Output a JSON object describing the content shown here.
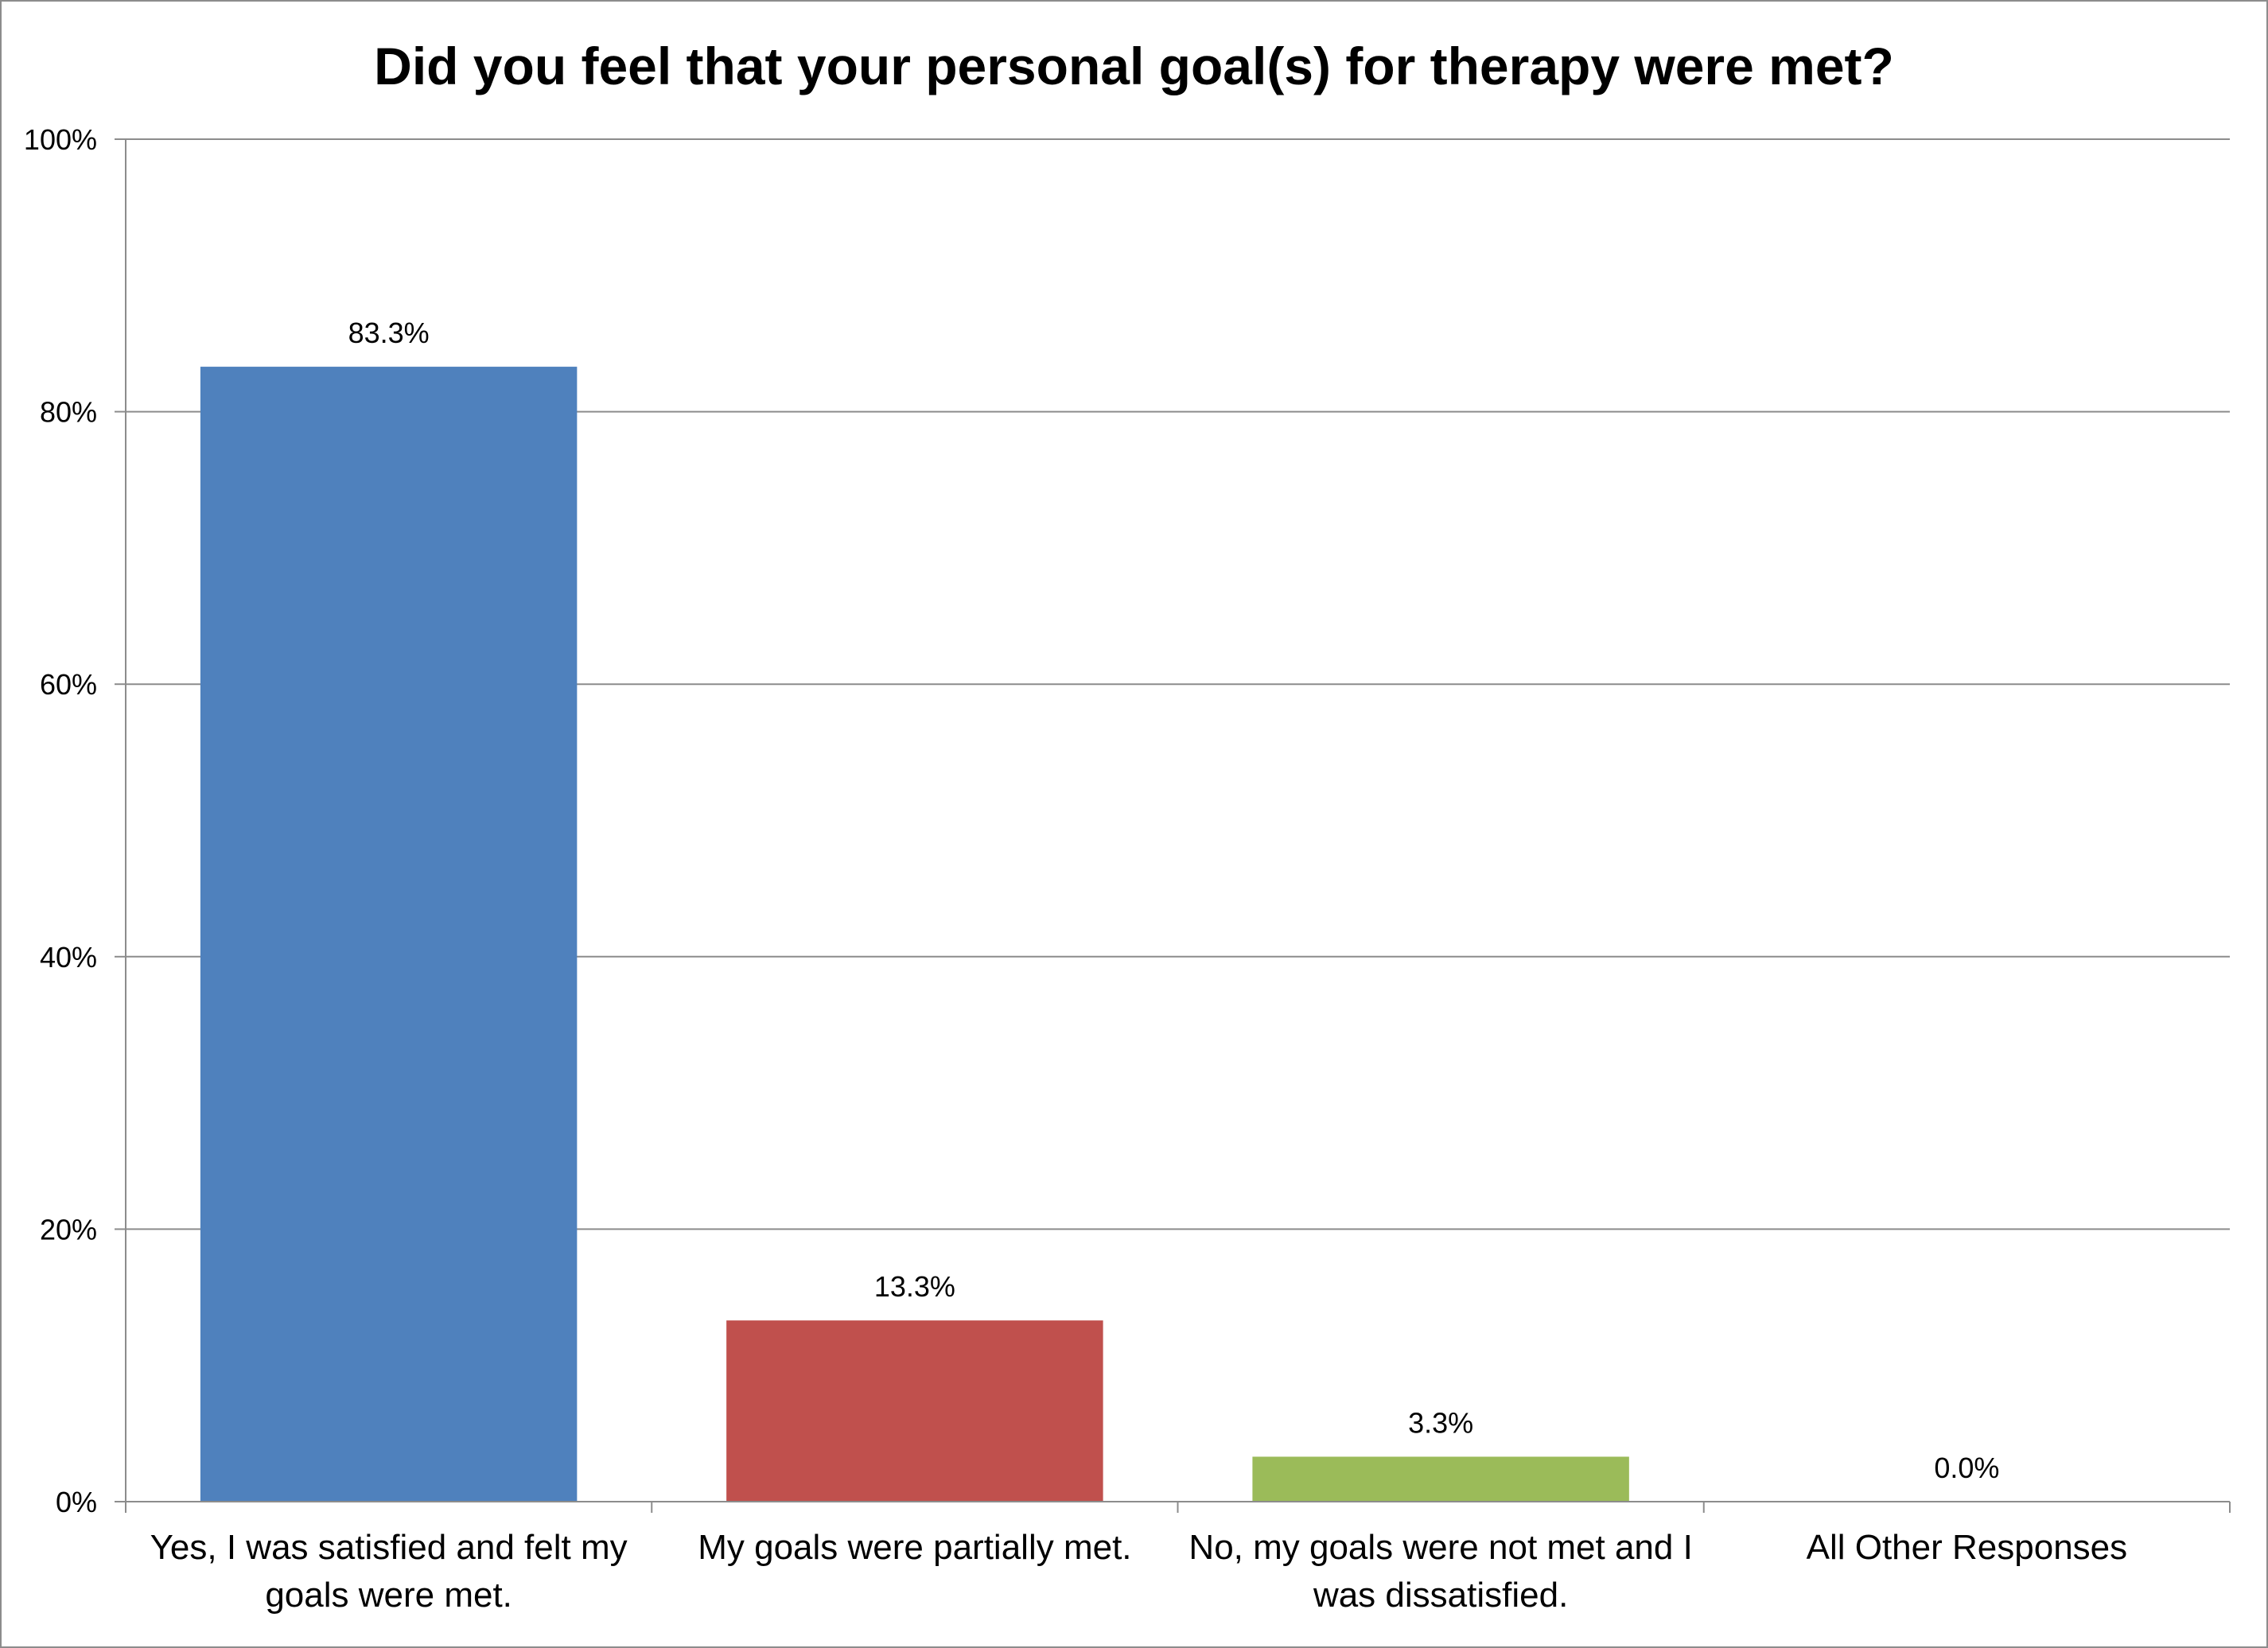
{
  "chart_data": {
    "type": "bar",
    "title": "Did you feel that your personal goal(s) for therapy were met?",
    "xlabel": "",
    "ylabel": "",
    "categories": [
      [
        "Yes, I was satisfied and felt my",
        "goals were met."
      ],
      [
        "My goals were partially met."
      ],
      [
        "No, my goals were not met and I",
        "was dissatisfied."
      ],
      [
        "All Other Responses"
      ]
    ],
    "values": [
      83.3,
      13.3,
      3.3,
      0.0
    ],
    "data_labels": [
      "83.3%",
      "13.3%",
      "3.3%",
      "0.0%"
    ],
    "colors": [
      "#4F81BD",
      "#C0504D",
      "#9BBB59",
      "#8064A2"
    ],
    "ylim": [
      0,
      100
    ],
    "yticks": [
      0,
      20,
      40,
      60,
      80,
      100
    ],
    "ytick_labels": [
      "0%",
      "20%",
      "40%",
      "60%",
      "80%",
      "100%"
    ],
    "grid": true,
    "legend": "none"
  }
}
